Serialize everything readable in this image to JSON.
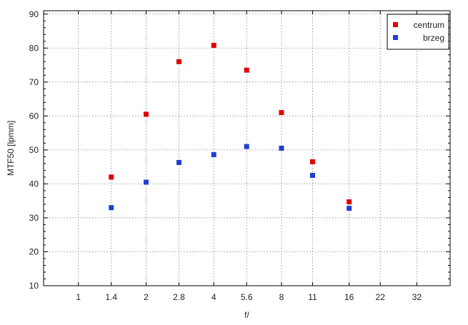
{
  "chart_data": {
    "type": "scatter",
    "title": "",
    "xlabel": "f/",
    "ylabel": "MTF50 [lpmm]",
    "x_ticks": [
      "1",
      "1.4",
      "2",
      "2.8",
      "4",
      "5.6",
      "8",
      "11",
      "16",
      "22",
      "32"
    ],
    "x_scale": "log2",
    "x_range": [
      0.7,
      45
    ],
    "ylim": [
      10,
      91
    ],
    "y_ticks": [
      10,
      20,
      30,
      40,
      50,
      60,
      70,
      80,
      90
    ],
    "grid": true,
    "legend_position": "top-right",
    "series": [
      {
        "name": "centrum",
        "color": "#e00000",
        "points": [
          {
            "x": 1.4,
            "y": 42.0
          },
          {
            "x": 2,
            "y": 60.5
          },
          {
            "x": 2.8,
            "y": 76.0
          },
          {
            "x": 4,
            "y": 80.8
          },
          {
            "x": 5.6,
            "y": 73.5
          },
          {
            "x": 8,
            "y": 61.0
          },
          {
            "x": 11,
            "y": 46.5
          },
          {
            "x": 16,
            "y": 34.7
          }
        ]
      },
      {
        "name": "brzeg",
        "color": "#1f3fcf",
        "points": [
          {
            "x": 1.4,
            "y": 33.0
          },
          {
            "x": 2,
            "y": 40.5
          },
          {
            "x": 2.8,
            "y": 46.3
          },
          {
            "x": 4,
            "y": 48.6
          },
          {
            "x": 5.6,
            "y": 51.0
          },
          {
            "x": 8,
            "y": 50.5
          },
          {
            "x": 11,
            "y": 42.5
          },
          {
            "x": 16,
            "y": 32.8
          }
        ]
      }
    ]
  }
}
